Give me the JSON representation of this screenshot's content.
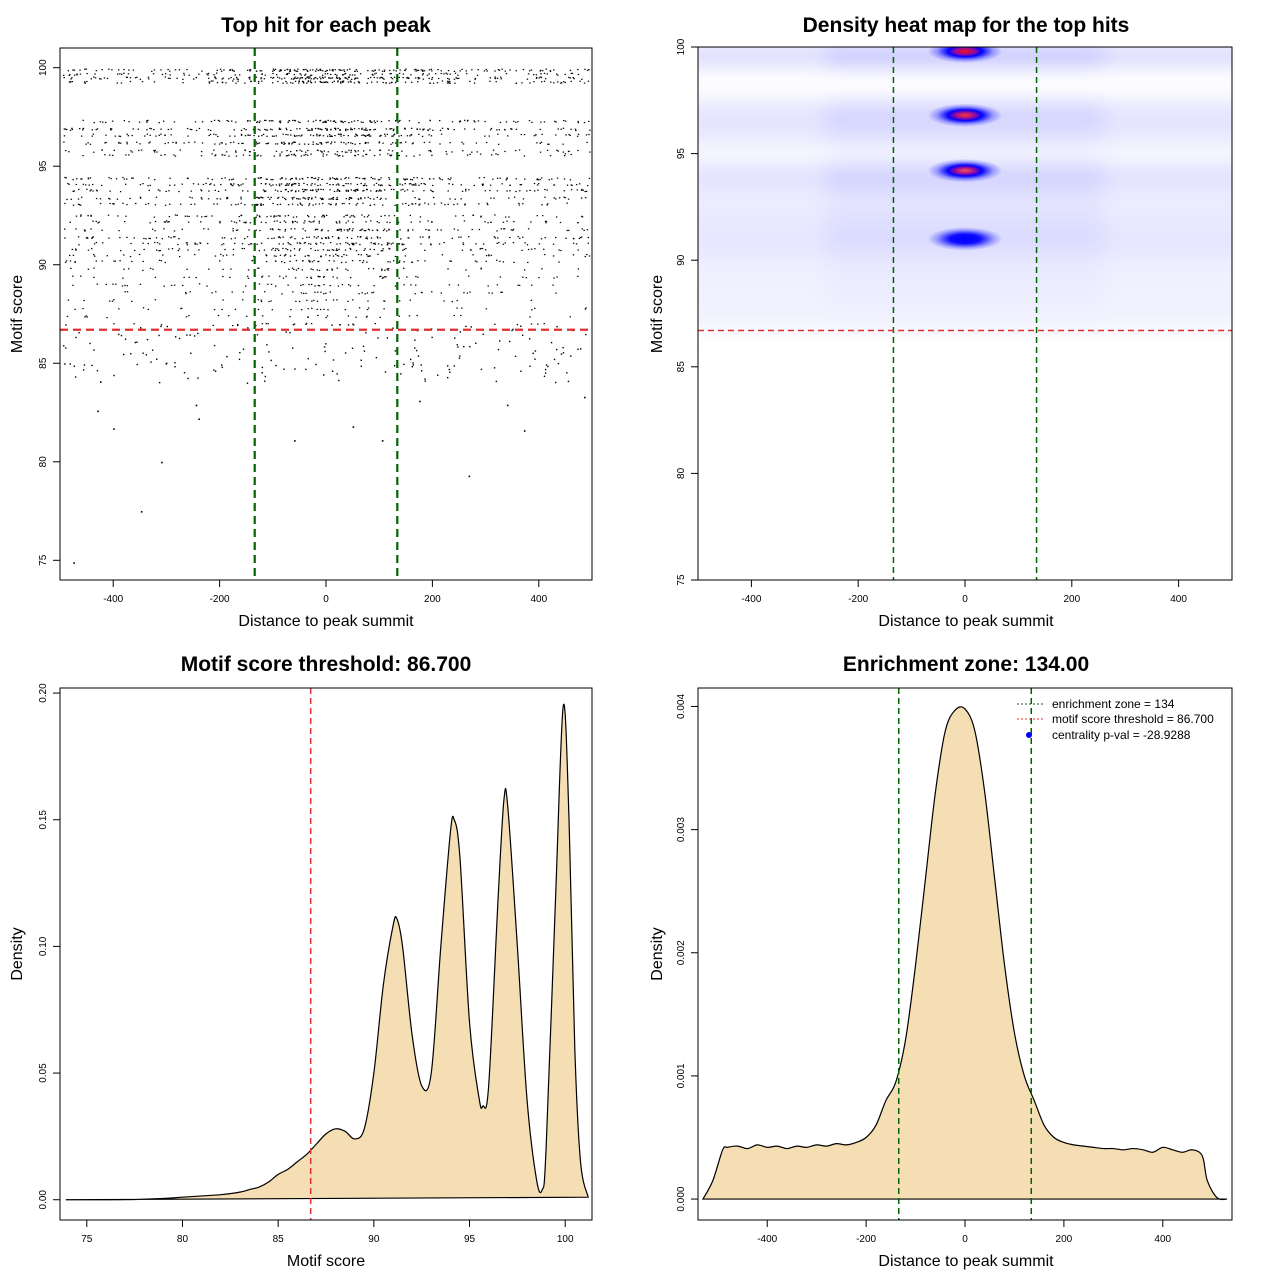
{
  "chart_data": [
    {
      "type": "scatter",
      "title": "Top hit for each peak",
      "xlabel": "Distance to peak summit",
      "ylabel": "Motif score",
      "xlim": [
        -500,
        500
      ],
      "ylim": [
        74,
        101
      ],
      "xticks": [
        -400,
        -200,
        0,
        200,
        400
      ],
      "yticks": [
        75,
        80,
        85,
        90,
        95,
        100
      ],
      "hlines": [
        {
          "y": 86.7,
          "color": "#e03030",
          "style": "dashed"
        }
      ],
      "vlines": [
        {
          "x": -134,
          "color": "#006400",
          "style": "dashed"
        },
        {
          "x": 134,
          "color": "#006400",
          "style": "dashed"
        }
      ],
      "score_levels": [
        {
          "y": 99.9,
          "weight": 1.0
        },
        {
          "y": 99.7,
          "weight": 0.6
        },
        {
          "y": 99.5,
          "weight": 1.0
        },
        {
          "y": 99.3,
          "weight": 0.8
        },
        {
          "y": 97.3,
          "weight": 0.8
        },
        {
          "y": 96.9,
          "weight": 0.9
        },
        {
          "y": 96.6,
          "weight": 0.8
        },
        {
          "y": 96.2,
          "weight": 0.7
        },
        {
          "y": 95.8,
          "weight": 0.5
        },
        {
          "y": 95.6,
          "weight": 0.5
        },
        {
          "y": 94.4,
          "weight": 0.8
        },
        {
          "y": 94.1,
          "weight": 0.8
        },
        {
          "y": 93.8,
          "weight": 0.8
        },
        {
          "y": 93.4,
          "weight": 0.7
        },
        {
          "y": 93.1,
          "weight": 0.6
        },
        {
          "y": 92.5,
          "weight": 0.5
        },
        {
          "y": 92.2,
          "weight": 0.5
        },
        {
          "y": 91.8,
          "weight": 0.6
        },
        {
          "y": 91.4,
          "weight": 0.6
        },
        {
          "y": 91.1,
          "weight": 0.6
        },
        {
          "y": 90.8,
          "weight": 0.5
        },
        {
          "y": 90.5,
          "weight": 0.4
        },
        {
          "y": 90.2,
          "weight": 0.4
        },
        {
          "y": 89.8,
          "weight": 0.3
        },
        {
          "y": 89.4,
          "weight": 0.3
        },
        {
          "y": 89.0,
          "weight": 0.3
        },
        {
          "y": 88.6,
          "weight": 0.25
        },
        {
          "y": 88.2,
          "weight": 0.22
        },
        {
          "y": 87.8,
          "weight": 0.2
        },
        {
          "y": 87.4,
          "weight": 0.18
        },
        {
          "y": 87.0,
          "weight": 0.15
        }
      ],
      "outliers": [
        {
          "x": -475,
          "y": 74.9
        },
        {
          "x": -348,
          "y": 77.5
        },
        {
          "x": -310,
          "y": 80.0
        },
        {
          "x": 268,
          "y": 79.3
        },
        {
          "x": -60,
          "y": 81.1
        },
        {
          "x": 105,
          "y": 81.1
        },
        {
          "x": 372,
          "y": 81.6
        },
        {
          "x": -400,
          "y": 81.7
        },
        {
          "x": 50,
          "y": 81.8
        },
        {
          "x": -240,
          "y": 82.2
        },
        {
          "x": -430,
          "y": 82.6
        },
        {
          "x": -245,
          "y": 82.9
        },
        {
          "x": 175,
          "y": 83.1
        },
        {
          "x": 340,
          "y": 82.9
        },
        {
          "x": 485,
          "y": 83.3
        }
      ]
    },
    {
      "type": "heatmap",
      "title": "Density heat map for the top hits",
      "xlabel": "Distance to peak summit",
      "ylabel": "Motif score",
      "xlim": [
        -500,
        500
      ],
      "ylim": [
        75,
        100
      ],
      "xticks": [
        -400,
        -200,
        0,
        200,
        400
      ],
      "yticks": [
        75,
        80,
        85,
        90,
        95,
        100
      ],
      "hlines": [
        {
          "y": 86.7,
          "color": "#e03030",
          "style": "dashed"
        }
      ],
      "vlines": [
        {
          "x": -134,
          "color": "#006400",
          "style": "dashed"
        },
        {
          "x": 134,
          "color": "#006400",
          "style": "dashed"
        }
      ],
      "colors": {
        "low": "#ffffff",
        "mid": "#0000ff",
        "high": "#ff0000"
      },
      "hotspots": [
        {
          "x": 0,
          "y": 99.8,
          "intensity": 1.0
        },
        {
          "x": 0,
          "y": 96.8,
          "intensity": 0.85
        },
        {
          "x": 0,
          "y": 94.2,
          "intensity": 0.75
        },
        {
          "x": 0,
          "y": 91.0,
          "intensity": 0.55
        }
      ]
    },
    {
      "type": "area",
      "title": "Motif score threshold: 86.700",
      "xlabel": "Motif score",
      "ylabel": "Density",
      "xlim": [
        73.6,
        101.4
      ],
      "ylim": [
        -0.008,
        0.202
      ],
      "xticks": [
        75,
        80,
        85,
        90,
        95,
        100
      ],
      "yticks": [
        0.0,
        0.05,
        0.1,
        0.15,
        0.2
      ],
      "ytick_labels": [
        "0.00",
        "0.05",
        "0.10",
        "0.15",
        "0.20"
      ],
      "vlines": [
        {
          "x": 86.7,
          "color": "#e03030",
          "style": "dashed"
        }
      ],
      "fill_color": "#f5deb3",
      "x": [
        73.9,
        75,
        77,
        79,
        80,
        81,
        82,
        83,
        83.5,
        84,
        84.5,
        85,
        85.5,
        86,
        86.5,
        87,
        87.5,
        88,
        88.5,
        89,
        89.5,
        90,
        90.5,
        91,
        91.2,
        91.5,
        92,
        92.5,
        93,
        93.5,
        94,
        94.2,
        94.5,
        95,
        95.5,
        95.7,
        96,
        96.5,
        96.8,
        97,
        97.5,
        98,
        98.5,
        98.8,
        99,
        99.5,
        99.9,
        100.2,
        100.5,
        100.8,
        101.2
      ],
      "y": [
        0.0,
        0.0,
        0.0,
        0.0005,
        0.001,
        0.0015,
        0.002,
        0.003,
        0.004,
        0.005,
        0.007,
        0.01,
        0.012,
        0.015,
        0.018,
        0.022,
        0.026,
        0.028,
        0.027,
        0.024,
        0.028,
        0.05,
        0.085,
        0.108,
        0.111,
        0.1,
        0.065,
        0.045,
        0.05,
        0.1,
        0.145,
        0.15,
        0.135,
        0.07,
        0.04,
        0.037,
        0.045,
        0.12,
        0.158,
        0.155,
        0.1,
        0.04,
        0.008,
        0.004,
        0.02,
        0.12,
        0.195,
        0.15,
        0.06,
        0.015,
        0.001
      ]
    },
    {
      "type": "area",
      "title": "Enrichment zone: 134.00",
      "xlabel": "Distance to peak summit",
      "ylabel": "Density",
      "xlim": [
        -540,
        540
      ],
      "ylim": [
        -0.00017,
        0.00415
      ],
      "xticks": [
        -400,
        -200,
        0,
        200,
        400
      ],
      "yticks": [
        0.0,
        0.001,
        0.002,
        0.003,
        0.004
      ],
      "ytick_labels": [
        "0.000",
        "0.001",
        "0.002",
        "0.003",
        "0.004"
      ],
      "vlines": [
        {
          "x": -134,
          "color": "#006400",
          "style": "dashed"
        },
        {
          "x": 134,
          "color": "#006400",
          "style": "dashed"
        }
      ],
      "fill_color": "#f5deb3",
      "legend": {
        "position": "top-right",
        "entries": [
          {
            "label": "enrichment zone = 134",
            "color": "#006400",
            "kind": "line"
          },
          {
            "label": "motif score threshold = 86.700",
            "color": "#e03030",
            "kind": "line"
          },
          {
            "label": "centrality p-val = -28.9288",
            "color": "#0000ff",
            "kind": "point"
          }
        ]
      },
      "x": [
        -530,
        -510,
        -490,
        -480,
        -460,
        -440,
        -420,
        -400,
        -380,
        -360,
        -340,
        -320,
        -300,
        -280,
        -260,
        -240,
        -220,
        -200,
        -180,
        -160,
        -140,
        -120,
        -100,
        -80,
        -60,
        -40,
        -20,
        0,
        20,
        40,
        60,
        80,
        100,
        120,
        140,
        160,
        180,
        200,
        220,
        240,
        260,
        280,
        300,
        320,
        340,
        360,
        380,
        400,
        420,
        440,
        460,
        480,
        490,
        510,
        530
      ],
      "y": [
        0.0,
        0.00015,
        0.0004,
        0.00042,
        0.00043,
        0.00041,
        0.00044,
        0.00042,
        0.00043,
        0.00041,
        0.00043,
        0.00042,
        0.00044,
        0.00043,
        0.00045,
        0.00044,
        0.00046,
        0.0005,
        0.0006,
        0.0008,
        0.00095,
        0.0013,
        0.0019,
        0.0026,
        0.0033,
        0.0038,
        0.00397,
        0.00398,
        0.0038,
        0.0033,
        0.0026,
        0.0019,
        0.00135,
        0.001,
        0.0008,
        0.0006,
        0.0005,
        0.00046,
        0.00044,
        0.00043,
        0.00042,
        0.00041,
        0.00041,
        0.0004,
        0.00041,
        0.0004,
        0.00038,
        0.00042,
        0.0004,
        0.00038,
        0.0004,
        0.00035,
        0.00015,
        1e-05,
        0.0
      ]
    }
  ]
}
